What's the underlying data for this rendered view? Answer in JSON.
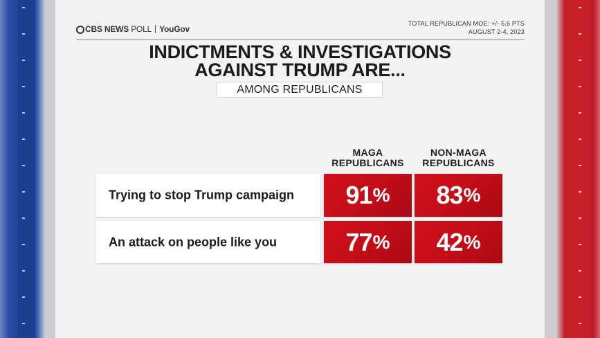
{
  "brand": {
    "network": "CBS NEWS",
    "poll_word": "POLL",
    "partner": "YouGov"
  },
  "moe": {
    "line1": "TOTAL REPUBLICAN MOE: +/- 5.6 PTS",
    "line2": "AUGUST 2-4, 2023"
  },
  "title": {
    "line1": "INDICTMENTS & INVESTIGATIONS",
    "line2": "AGAINST TRUMP ARE..."
  },
  "subtitle": "AMONG REPUBLICANS",
  "colors": {
    "cell_red": "#c20d18",
    "text_dark": "#1b1b1b",
    "left_accent": "#1c3f94",
    "right_accent": "#d8232e"
  },
  "chart_data": {
    "type": "table",
    "columns": [
      {
        "line1": "MAGA",
        "line2": "REPUBLICANS"
      },
      {
        "line1": "NON-MAGA",
        "line2": "REPUBLICANS"
      }
    ],
    "rows": [
      {
        "label": "Trying to stop Trump campaign",
        "values": [
          91,
          83
        ]
      },
      {
        "label": "An attack on people like you",
        "values": [
          77,
          42
        ]
      }
    ],
    "unit": "%"
  }
}
